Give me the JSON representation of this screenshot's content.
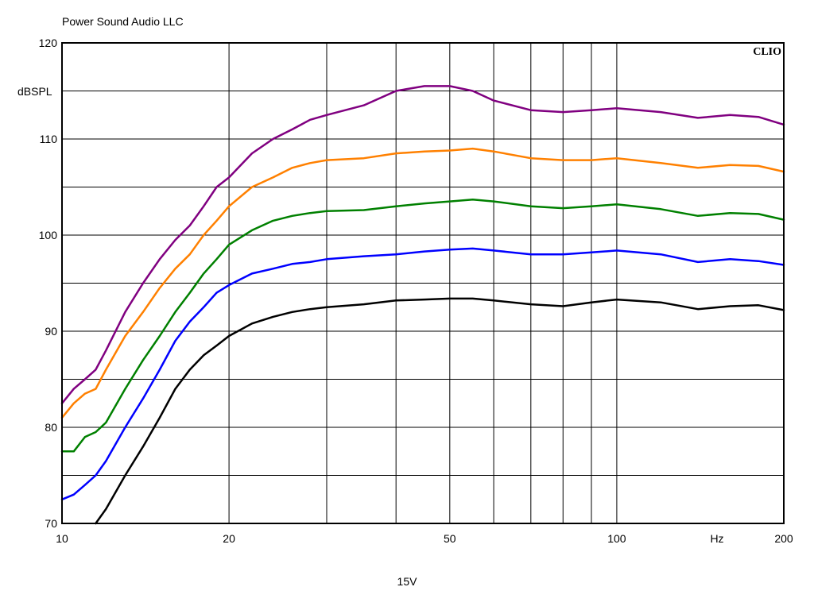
{
  "header": {
    "title": "Power Sound Audio LLC",
    "brand": "CLIO"
  },
  "footer": {
    "caption": "15V"
  },
  "chart_data": {
    "type": "line",
    "title": "Power Sound Audio LLC",
    "caption": "15V",
    "xlabel": "Hz",
    "ylabel": "dBSPL",
    "xscale": "log",
    "xlim": [
      10,
      200
    ],
    "ylim": [
      70,
      120
    ],
    "grid": true,
    "x_ticks": [
      10,
      20,
      50,
      100,
      200
    ],
    "x_tick_labels": [
      "10",
      "20",
      "50",
      "100",
      "200"
    ],
    "x_gridlines": [
      20,
      30,
      40,
      50,
      60,
      70,
      80,
      90,
      100
    ],
    "y_ticks": [
      70,
      80,
      90,
      100,
      110,
      120
    ],
    "y_gridlines": [
      75,
      80,
      85,
      90,
      95,
      100,
      105,
      110,
      115
    ],
    "series": [
      {
        "color": "#800080",
        "x": [
          10,
          10.5,
          11,
          11.5,
          12,
          13,
          14,
          15,
          16,
          17,
          18,
          19,
          20,
          22,
          24,
          26,
          28,
          30,
          35,
          40,
          45,
          50,
          55,
          60,
          70,
          80,
          90,
          100,
          120,
          140,
          160,
          180,
          200
        ],
        "y": [
          82.5,
          84,
          85,
          86,
          88,
          92,
          95,
          97.5,
          99.5,
          101,
          103,
          105,
          106,
          108.5,
          110,
          111,
          112,
          112.5,
          113.5,
          115,
          115.5,
          115.5,
          115,
          114,
          113,
          112.8,
          113,
          113.2,
          112.8,
          112.2,
          112.5,
          112.3,
          111.5
        ]
      },
      {
        "color": "#ff8000",
        "x": [
          10,
          10.5,
          11,
          11.5,
          12,
          13,
          14,
          15,
          16,
          17,
          18,
          19,
          20,
          22,
          24,
          26,
          28,
          30,
          35,
          40,
          45,
          50,
          55,
          60,
          70,
          80,
          90,
          100,
          120,
          140,
          160,
          180,
          200
        ],
        "y": [
          81,
          82.5,
          83.5,
          84,
          86,
          89.5,
          92,
          94.5,
          96.5,
          98,
          100,
          101.5,
          103,
          105,
          106,
          107,
          107.5,
          107.8,
          108,
          108.5,
          108.7,
          108.8,
          109,
          108.7,
          108,
          107.8,
          107.8,
          108,
          107.5,
          107,
          107.3,
          107.2,
          106.6
        ]
      },
      {
        "color": "#008000",
        "x": [
          10,
          10.5,
          11,
          11.5,
          12,
          13,
          14,
          15,
          16,
          17,
          18,
          19,
          20,
          22,
          24,
          26,
          28,
          30,
          35,
          40,
          45,
          50,
          55,
          60,
          70,
          80,
          90,
          100,
          120,
          140,
          160,
          180,
          200
        ],
        "y": [
          77.5,
          77.5,
          79,
          79.5,
          80.5,
          84,
          87,
          89.5,
          92,
          94,
          96,
          97.5,
          99,
          100.5,
          101.5,
          102,
          102.3,
          102.5,
          102.6,
          103,
          103.3,
          103.5,
          103.7,
          103.5,
          103,
          102.8,
          103,
          103.2,
          102.7,
          102,
          102.3,
          102.2,
          101.6
        ]
      },
      {
        "color": "#0000ff",
        "x": [
          10,
          10.5,
          11,
          11.5,
          12,
          13,
          14,
          15,
          16,
          17,
          18,
          19,
          20,
          22,
          24,
          26,
          28,
          30,
          35,
          40,
          45,
          50,
          55,
          60,
          70,
          80,
          90,
          100,
          120,
          140,
          160,
          180,
          200
        ],
        "y": [
          72.5,
          73,
          74,
          75,
          76.5,
          80,
          83,
          86,
          89,
          91,
          92.5,
          94,
          94.8,
          96,
          96.5,
          97,
          97.2,
          97.5,
          97.8,
          98,
          98.3,
          98.5,
          98.6,
          98.4,
          98,
          98,
          98.2,
          98.4,
          98,
          97.2,
          97.5,
          97.3,
          96.9
        ]
      },
      {
        "color": "#000000",
        "x": [
          11.5,
          12,
          13,
          14,
          15,
          16,
          17,
          18,
          19,
          20,
          22,
          24,
          26,
          28,
          30,
          35,
          40,
          45,
          50,
          55,
          60,
          70,
          80,
          90,
          100,
          120,
          140,
          160,
          180,
          200
        ],
        "y": [
          70,
          71.5,
          75,
          78,
          81,
          84,
          86,
          87.5,
          88.5,
          89.5,
          90.8,
          91.5,
          92,
          92.3,
          92.5,
          92.8,
          93.2,
          93.3,
          93.4,
          93.4,
          93.2,
          92.8,
          92.6,
          93,
          93.3,
          93,
          92.3,
          92.6,
          92.7,
          92.2
        ]
      }
    ]
  }
}
